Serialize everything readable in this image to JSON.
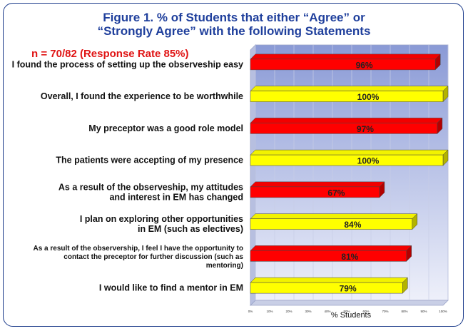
{
  "header": {
    "title_line1": "Figure 1.  % of Students that either “Agree” or",
    "title_line2": "“Strongly Agree” with the following Statements",
    "subtitle": "n = 70/82  (Response Rate 85%)"
  },
  "chart_data": {
    "type": "bar",
    "orientation": "horizontal",
    "categories": [
      [
        "I found the process of setting up the observeship easy"
      ],
      [
        "Overall, I found the experience to be worthwhile"
      ],
      [
        "My preceptor was a good role model"
      ],
      [
        "The patients were accepting of my presence"
      ],
      [
        "As a result of the observeship, my attitudes",
        "and interest in EM has changed"
      ],
      [
        "I plan on exploring other opportunities",
        "in EM (such as electives)"
      ],
      [
        "As a result of the observership, I feel I have the opportunity to",
        "contact the preceptor for further discussion (such as",
        "mentoring)"
      ],
      [
        "I would like to find a mentor in EM"
      ]
    ],
    "values": [
      96,
      100,
      97,
      100,
      67,
      84,
      81,
      79
    ],
    "data_labels": [
      "96%",
      "100%",
      "97%",
      "100%",
      "67%",
      "84%",
      "81%",
      "79%"
    ],
    "bar_colors": [
      "#ff0000",
      "#ffff00",
      "#ff0000",
      "#ffff00",
      "#ff0000",
      "#ffff00",
      "#ff0000",
      "#ffff00"
    ],
    "xlim": [
      0,
      100
    ],
    "x_ticks": [
      "0%",
      "10%",
      "20%",
      "30%",
      "40%",
      "50%",
      "60%",
      "70%",
      "80%",
      "90%",
      "100%"
    ],
    "xlabel": "% Students",
    "grid": true,
    "style": "3d-bar",
    "colors": {
      "plot_top": "#8a9ad6",
      "plot_bottom": "#eef0fa",
      "title": "#1f3f9c",
      "subtitle": "#e01414"
    }
  }
}
